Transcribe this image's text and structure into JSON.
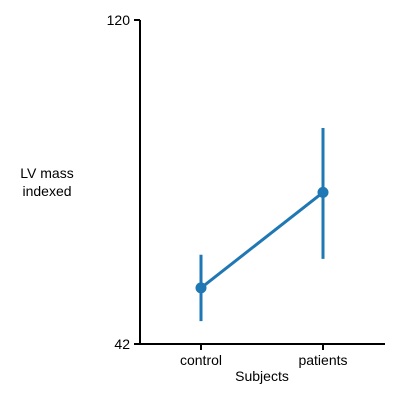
{
  "chart_data": {
    "type": "line",
    "title": "",
    "xlabel": "Subjects",
    "ylabel": [
      "LV mass",
      "indexed"
    ],
    "categories": [
      "control",
      "patients"
    ],
    "ylim": [
      42,
      120
    ],
    "yticks": [
      42,
      120
    ],
    "grid": false,
    "series": [
      {
        "color": "#1f77b4",
        "values": [
          55.5,
          78.5
        ],
        "error_low": [
          47.5,
          62.5
        ],
        "error_high": [
          63.5,
          94.0
        ]
      }
    ]
  }
}
